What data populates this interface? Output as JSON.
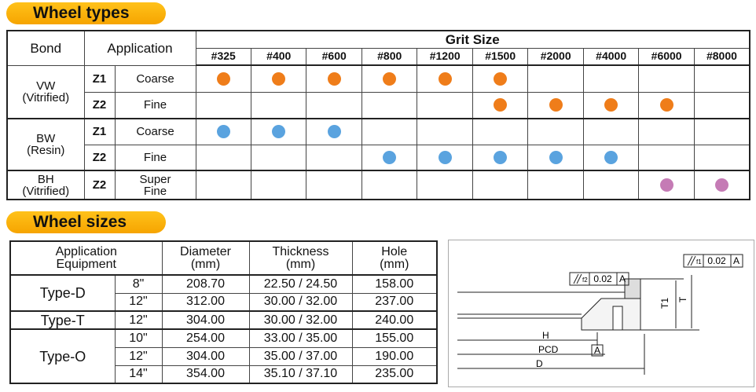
{
  "wheel_types": {
    "title": "Wheel types",
    "headers": {
      "bond": "Bond",
      "application": "Application",
      "grit_size": "Grit Size"
    },
    "grits": [
      "#325",
      "#400",
      "#600",
      "#800",
      "#1200",
      "#1500",
      "#2000",
      "#4000",
      "#6000",
      "#8000"
    ],
    "groups": [
      {
        "bond": "VW",
        "bond_note": "(Vitrified)",
        "color": "#ef7d1a",
        "rows": [
          {
            "grade": "Z1",
            "application": "Coarse",
            "available": [
              true,
              true,
              true,
              true,
              true,
              true,
              false,
              false,
              false,
              false
            ]
          },
          {
            "grade": "Z2",
            "application": "Fine",
            "available": [
              false,
              false,
              false,
              false,
              false,
              true,
              true,
              true,
              true,
              false
            ]
          }
        ]
      },
      {
        "bond": "BW",
        "bond_note": "(Resin)",
        "color": "#5aa3df",
        "rows": [
          {
            "grade": "Z1",
            "application": "Coarse",
            "available": [
              true,
              true,
              true,
              false,
              false,
              false,
              false,
              false,
              false,
              false
            ]
          },
          {
            "grade": "Z2",
            "application": "Fine",
            "available": [
              false,
              false,
              false,
              true,
              true,
              true,
              true,
              true,
              false,
              false
            ]
          }
        ]
      },
      {
        "bond": "BH",
        "bond_note": "(Vitrified)",
        "color": "#c57bb5",
        "rows": [
          {
            "grade": "Z2",
            "application": "Super\nFine",
            "available": [
              false,
              false,
              false,
              false,
              false,
              false,
              false,
              false,
              true,
              true
            ]
          }
        ]
      }
    ]
  },
  "wheel_sizes": {
    "title": "Wheel sizes",
    "headers": [
      "Application\nEquipment",
      "Diameter\n(mm)",
      "Thickness\n(mm)",
      "Hole\n(mm)"
    ],
    "groups": [
      {
        "type": "Type-D",
        "rows": [
          {
            "size": "8\"",
            "diameter": "208.70",
            "thickness": "22.50 / 24.50",
            "hole": "158.00"
          },
          {
            "size": "12\"",
            "diameter": "312.00",
            "thickness": "30.00 / 32.00",
            "hole": "237.00"
          }
        ]
      },
      {
        "type": "Type-T",
        "rows": [
          {
            "size": "12\"",
            "diameter": "304.00",
            "thickness": "30.00 / 32.00",
            "hole": "240.00"
          }
        ]
      },
      {
        "type": "Type-O",
        "rows": [
          {
            "size": "10\"",
            "diameter": "254.00",
            "thickness": "33.00 / 35.00",
            "hole": "155.00"
          },
          {
            "size": "12\"",
            "diameter": "304.00",
            "thickness": "35.00 / 37.00",
            "hole": "190.00"
          },
          {
            "size": "14\"",
            "diameter": "354.00",
            "thickness": "35.10 / 37.10",
            "hole": "235.00"
          }
        ]
      }
    ]
  },
  "diagram": {
    "tolerance_2": {
      "symbol": "f2",
      "value": "0.02",
      "datum": "A"
    },
    "tolerance_1": {
      "symbol": "f1",
      "value": "0.02",
      "datum": "A"
    },
    "H": "H",
    "PCD": "PCD",
    "D": "D",
    "T1": "T1",
    "T": "T",
    "datum_ref": "A"
  }
}
